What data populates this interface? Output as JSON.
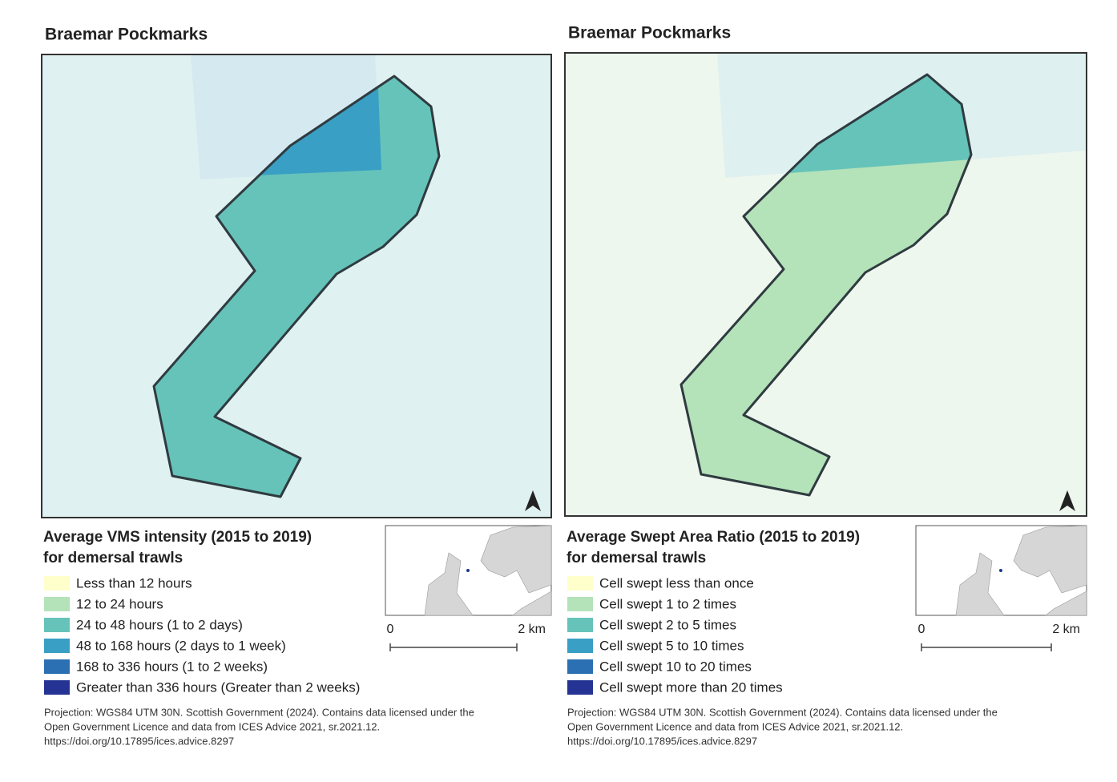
{
  "panels": [
    {
      "title": "Braemar Pockmarks",
      "legend_title": [
        "Average VMS intensity (2015 to 2019)",
        "for demersal trawls"
      ],
      "legend": [
        {
          "label": "Less than 12 hours",
          "color": "#ffffcc"
        },
        {
          "label": "12 to 24 hours",
          "color": "#b4e2b9"
        },
        {
          "label": "24 to 48 hours (1 to 2 days)",
          "color": "#66c3b9"
        },
        {
          "label": "48 to 168 hours (2 days to 1 week)",
          "color": "#3a9fc4"
        },
        {
          "label": "168 to 336 hours (1 to 2 weeks)",
          "color": "#2b70b2"
        },
        {
          "label": "Greater than 336 hours (Greater than 2 weeks)",
          "color": "#253494"
        }
      ],
      "scale_bar": {
        "start": "0",
        "end": "2 km"
      },
      "footnote": [
        "Projection: WGS84 UTM 30N. Scottish Government (2024). Contains data licensed under the",
        "Open Government Licence and data from ICES Advice 2021, sr.2021.12.",
        "https://doi.org/10.17895/ices.advice.8297"
      ]
    },
    {
      "title": "Braemar Pockmarks",
      "legend_title": [
        "Average Swept Area Ratio (2015 to 2019)",
        "for demersal trawls"
      ],
      "legend": [
        {
          "label": "Cell swept less than once",
          "color": "#ffffcc"
        },
        {
          "label": "Cell swept 1 to 2 times",
          "color": "#b4e2b9"
        },
        {
          "label": "Cell swept 2 to 5 times",
          "color": "#66c3b9"
        },
        {
          "label": "Cell swept 5 to 10 times",
          "color": "#3a9fc4"
        },
        {
          "label": "Cell swept 10 to 20 times",
          "color": "#2b70b2"
        },
        {
          "label": "Cell swept more than 20 times",
          "color": "#253494"
        }
      ],
      "scale_bar": {
        "start": "0",
        "end": "2 km"
      },
      "footnote": [
        "Projection: WGS84 UTM 30N. Scottish Government (2024). Contains data licensed under the",
        "Open Government Licence and data from ICES Advice 2021, sr.2021.12.",
        "https://doi.org/10.17895/ices.advice.8297"
      ]
    }
  ]
}
